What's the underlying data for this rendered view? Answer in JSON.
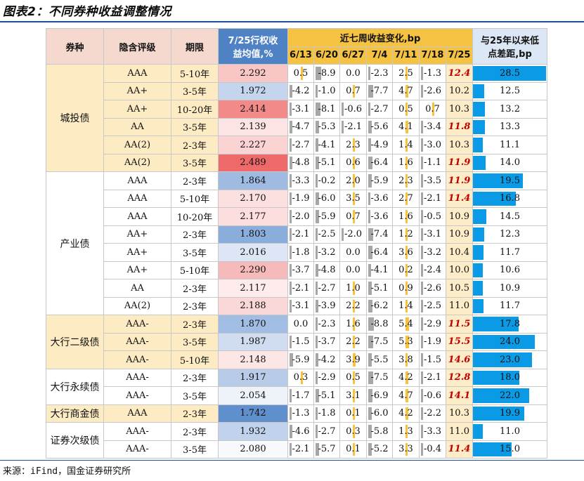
{
  "title": "图表2：不同券种收益调整情况",
  "source": "来源：iFind，国金证券研究所",
  "headers": {
    "type": "券种",
    "rating": "隐含评级",
    "term": "期限",
    "avg_line1": "7/25行权收",
    "avg_line2": "益均值,%",
    "weekly": "近七周收益变化,bp",
    "weeks": [
      "6/13",
      "6/20",
      "6/27",
      "7/4",
      "7/11",
      "7/18",
      "7/25"
    ],
    "gap_line1": "与25年以来低",
    "gap_line2": "点差距,bp"
  },
  "groups": [
    {
      "name": "城投债",
      "style": "gold",
      "rows": [
        {
          "rating": "AAA",
          "term": "5-10年",
          "avg": "2.292",
          "avg_color": "#f9c6c6",
          "w": [
            "0.5",
            "-8.9",
            "0.0",
            "-2.3",
            "2.5",
            "-1.3",
            "12.4"
          ],
          "last_red": true,
          "gap": "28.5",
          "gap_val": 28.5
        },
        {
          "rating": "AA+",
          "term": "3-5年",
          "avg": "1.972",
          "avg_color": "#c5d5ee",
          "w": [
            "-4.2",
            "-1.0",
            "0.7",
            "-7.7",
            "4.7",
            "-2.6",
            "10.2"
          ],
          "last_red": false,
          "gap": "12.5",
          "gap_val": 12.5
        },
        {
          "rating": "AA+",
          "term": "10-20年",
          "avg": "2.414",
          "avg_color": "#f28a8a",
          "w": [
            "-3.1",
            "-8.1",
            "-0.6",
            "-2.7",
            "0.5",
            "0.7",
            "10.3"
          ],
          "last_red": false,
          "gap": "13.2",
          "gap_val": 13.2
        },
        {
          "rating": "AA",
          "term": "3-5年",
          "avg": "2.139",
          "avg_color": "#fde4e4",
          "w": [
            "-4.7",
            "-5.3",
            "-2.1",
            "-5.6",
            "4.1",
            "-3.4",
            "11.8"
          ],
          "last_red": true,
          "gap": "13.3",
          "gap_val": 13.3
        },
        {
          "rating": "AA(2)",
          "term": "2-3年",
          "avg": "2.227",
          "avg_color": "#fbd3d3",
          "w": [
            "-2.7",
            "-4.1",
            "2.3",
            "-4.9",
            "1.4",
            "-3.0",
            "10.3"
          ],
          "last_red": false,
          "gap": "11.1",
          "gap_val": 11.1
        },
        {
          "rating": "AA(2)",
          "term": "3-5年",
          "avg": "2.489",
          "avg_color": "#ee6a6a",
          "w": [
            "-4.8",
            "-5.1",
            "0.6",
            "-6.4",
            "1.6",
            "-1.1",
            "11.9"
          ],
          "last_red": true,
          "gap": "14.0",
          "gap_val": 14.0
        }
      ]
    },
    {
      "name": "产业债",
      "style": "white",
      "rows": [
        {
          "rating": "AAA",
          "term": "2-3年",
          "avg": "1.864",
          "avg_color": "#9fbbe2",
          "w": [
            "-3.3",
            "-0.2",
            "2.0",
            "-5.9",
            "2.3",
            "-3.5",
            "11.9"
          ],
          "last_red": true,
          "gap": "19.5",
          "gap_val": 19.5
        },
        {
          "rating": "AAA",
          "term": "5-10年",
          "avg": "2.170",
          "avg_color": "#fce0e0",
          "w": [
            "-1.9",
            "-6.0",
            "3.5",
            "-3.6",
            "2.7",
            "-2.1",
            "11.4"
          ],
          "last_red": true,
          "gap": "16.8",
          "gap_val": 16.8
        },
        {
          "rating": "AAA",
          "term": "10-20年",
          "avg": "2.177",
          "avg_color": "#fcdede",
          "w": [
            "-2.0",
            "-5.9",
            "0.7",
            "-3.6",
            "1.6",
            "-0.5",
            "10.9"
          ],
          "last_red": false,
          "gap": "14.5",
          "gap_val": 14.5
        },
        {
          "rating": "AA+",
          "term": "2-3年",
          "avg": "1.803",
          "avg_color": "#8aaedc",
          "w": [
            "-2.1",
            "-2.5",
            "-2.0",
            "-7.4",
            "1.2",
            "-3.1",
            "10.9"
          ],
          "last_red": false,
          "gap": "12.3",
          "gap_val": 12.3
        },
        {
          "rating": "AA+",
          "term": "3-5年",
          "avg": "2.016",
          "avg_color": "#dde6f4",
          "w": [
            "-1.8",
            "-3.2",
            "0.0",
            "-6.4",
            "3.6",
            "-3.2",
            "10.4"
          ],
          "last_red": false,
          "gap": "11.7",
          "gap_val": 11.7
        },
        {
          "rating": "AA+",
          "term": "5-10年",
          "avg": "2.290",
          "avg_color": "#f7baba",
          "w": [
            "-3.7",
            "-4.8",
            "0.0",
            "-4.1",
            "0.2",
            "-2.4",
            "10.0"
          ],
          "last_red": false,
          "gap": "10.6",
          "gap_val": 10.6
        },
        {
          "rating": "AA",
          "term": "2-3年",
          "avg": "2.117",
          "avg_color": "#feecec",
          "w": [
            "-2.1",
            "-2.7",
            "1.0",
            "-5.1",
            "0.9",
            "-2.6",
            "10.5"
          ],
          "last_red": false,
          "gap": "10.9",
          "gap_val": 10.9
        },
        {
          "rating": "AA(2)",
          "term": "2-3年",
          "avg": "2.188",
          "avg_color": "#fbd8d8",
          "w": [
            "-3.1",
            "-3.9",
            "2.2",
            "-6.2",
            "1.4",
            "-2.5",
            "11.0"
          ],
          "last_red": false,
          "gap": "11.7",
          "gap_val": 11.7
        }
      ]
    },
    {
      "name": "大行二级债",
      "style": "gold",
      "rows": [
        {
          "rating": "AAA-",
          "term": "2-3年",
          "avg": "1.870",
          "avg_color": "#a2bde3",
          "w": [
            "0.0",
            "-2.3",
            "1.6",
            "-8.8",
            "5.4",
            "-2.9",
            "11.5"
          ],
          "last_red": true,
          "gap": "17.8",
          "gap_val": 17.8
        },
        {
          "rating": "AAA-",
          "term": "3-5年",
          "avg": "1.987",
          "avg_color": "#d0dcef",
          "w": [
            "-1.5",
            "-3.7",
            "2.2",
            "-7.5",
            "5.3",
            "-1.9",
            "15.5"
          ],
          "last_red": true,
          "gap": "24.0",
          "gap_val": 24.0
        },
        {
          "rating": "AAA-",
          "term": "5-10年",
          "avg": "2.148",
          "avg_color": "#fde6e6",
          "w": [
            "-5.9",
            "-4.2",
            "3.9",
            "-5.5",
            "3.8",
            "-1.5",
            "14.6"
          ],
          "last_red": true,
          "gap": "23.0",
          "gap_val": 23.0
        }
      ]
    },
    {
      "name": "大行永续债",
      "style": "white",
      "rows": [
        {
          "rating": "AAA-",
          "term": "2-3年",
          "avg": "1.917",
          "avg_color": "#b8cbe8",
          "w": [
            "0.3",
            "-2.9",
            "0.5",
            "-7.5",
            "4.2",
            "-2.1",
            "12.8"
          ],
          "last_red": true,
          "gap": "18.0",
          "gap_val": 18.0
        },
        {
          "rating": "AAA-",
          "term": "3-5年",
          "avg": "2.054",
          "avg_color": "#eef2f9",
          "w": [
            "-1.7",
            "-5.1",
            "3.1",
            "-6.9",
            "4.7",
            "-0.6",
            "14.1"
          ],
          "last_red": true,
          "gap": "22.0",
          "gap_val": 22.0
        }
      ]
    },
    {
      "name": "大行商金债",
      "style": "gold",
      "rows": [
        {
          "rating": "AAA",
          "term": "2-3年",
          "avg": "1.742",
          "avg_color": "#5f8fcc",
          "w": [
            "-1.3",
            "-1.8",
            "0.1",
            "-6.0",
            "4.2",
            "-2.2",
            "10.3"
          ],
          "last_red": false,
          "gap": "19.9",
          "gap_val": 19.9
        }
      ]
    },
    {
      "name": "证券次级债",
      "style": "white",
      "rows": [
        {
          "rating": "AAA-",
          "term": "2-3年",
          "avg": "1.932",
          "avg_color": "#c1d2ec",
          "w": [
            "-4.6",
            "-2.7",
            "0.3",
            "-5.8",
            "1.3",
            "-3.3",
            "11.0"
          ],
          "last_red": false,
          "gap": "11.0",
          "gap_val": 11.0
        },
        {
          "rating": "AAA-",
          "term": "3-5年",
          "avg": "2.080",
          "avg_color": "#f7f9fc",
          "w": [
            "-2.1",
            "-5.7",
            "0.1",
            "-5.2",
            "3.3",
            "-0.4",
            "11.4"
          ],
          "last_red": true,
          "gap": "15.0",
          "gap_val": 15.0
        }
      ]
    }
  ]
}
